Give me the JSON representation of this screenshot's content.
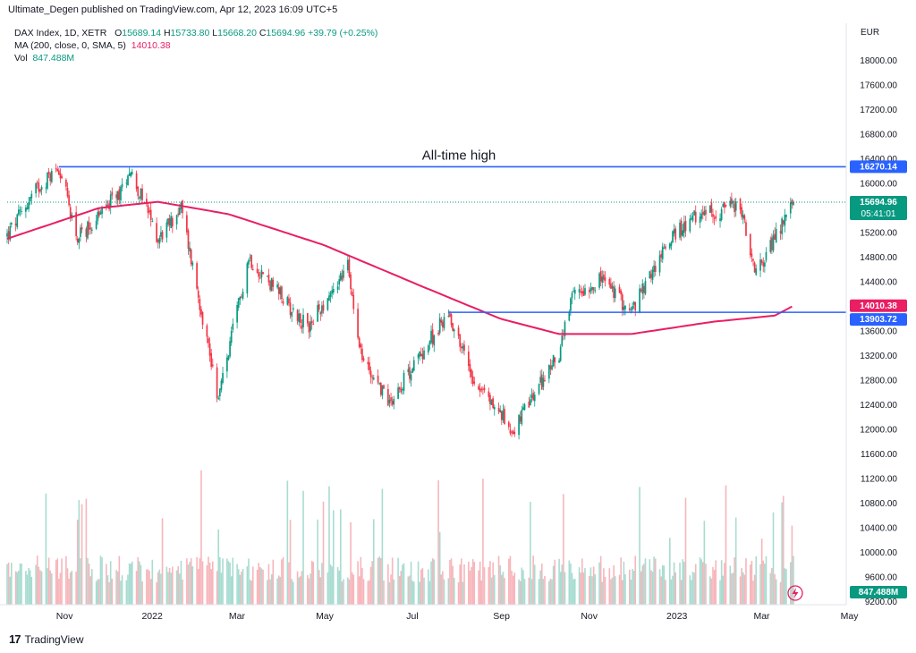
{
  "header": {
    "published_text": "Ultimate_Degen published on TradingView.com, Apr 12, 2023 16:09 UTC+5"
  },
  "legend": {
    "symbol_text": "DAX Index, 1D, XETR",
    "open_label": "O",
    "open": "15689.14",
    "high_label": "H",
    "high": "15733.80",
    "low_label": "L",
    "low": "15668.20",
    "close_label": "C",
    "close": "15694.96",
    "change": "+39.79 (+0.25%)",
    "ma_text": "MA (200, close, 0, SMA, 5)",
    "ma_value": "14010.38",
    "vol_label": "Vol",
    "vol_value": "847.488M"
  },
  "axis": {
    "currency": "EUR",
    "price_ticks": [
      "18000.00",
      "17600.00",
      "17200.00",
      "16800.00",
      "16400.00",
      "16000.00",
      "15200.00",
      "14800.00",
      "14400.00",
      "13600.00",
      "13200.00",
      "12800.00",
      "12400.00",
      "12000.00",
      "11600.00",
      "11200.00",
      "10800.00",
      "10400.00",
      "10000.00",
      "9600.00",
      "9200.00"
    ],
    "time_ticks": [
      "Nov",
      "2022",
      "Mar",
      "May",
      "Jul",
      "Sep",
      "Nov",
      "2023",
      "Mar",
      "May"
    ]
  },
  "labels": {
    "ath_annotation": "All-time high",
    "ath_price": "16270.14",
    "last_price": "15694.96",
    "countdown": "05:41:01",
    "ma_price": "14010.38",
    "support_price": "13903.72",
    "volume_badge": "847.488M"
  },
  "colors": {
    "up": "#089981",
    "down": "#f23645",
    "ma": "#e91e63",
    "hline": "#2962ff",
    "last_price_line": "#089981"
  },
  "footer": {
    "brand": "TradingView"
  },
  "chart_data": {
    "type": "candlestick",
    "title": "DAX Index, 1D, XETR",
    "currency": "EUR",
    "ylim": [
      9200,
      18200
    ],
    "date_range": [
      "2021-10-12",
      "2023-04-12"
    ],
    "price_path": [
      {
        "date": "2021-10-12",
        "close": 15150
      },
      {
        "date": "2021-11-01",
        "close": 15900
      },
      {
        "date": "2021-11-17",
        "close": 16270
      },
      {
        "date": "2021-11-30",
        "close": 15100
      },
      {
        "date": "2021-12-31",
        "close": 15900
      },
      {
        "date": "2022-01-05",
        "close": 16260
      },
      {
        "date": "2022-01-25",
        "close": 15100
      },
      {
        "date": "2022-02-10",
        "close": 15600
      },
      {
        "date": "2022-02-24",
        "close": 13950
      },
      {
        "date": "2022-03-08",
        "close": 12500
      },
      {
        "date": "2022-03-29",
        "close": 14800
      },
      {
        "date": "2022-05-09",
        "close": 13650
      },
      {
        "date": "2022-06-06",
        "close": 14650
      },
      {
        "date": "2022-06-16",
        "close": 13150
      },
      {
        "date": "2022-07-05",
        "close": 12450
      },
      {
        "date": "2022-08-15",
        "close": 13900
      },
      {
        "date": "2022-09-02",
        "close": 12800
      },
      {
        "date": "2022-09-29",
        "close": 11975
      },
      {
        "date": "2022-10-31",
        "close": 13250
      },
      {
        "date": "2022-11-10",
        "close": 14200
      },
      {
        "date": "2022-11-30",
        "close": 14450
      },
      {
        "date": "2022-12-20",
        "close": 13900
      },
      {
        "date": "2023-01-16",
        "close": 15100
      },
      {
        "date": "2023-02-03",
        "close": 15450
      },
      {
        "date": "2023-03-06",
        "close": 15650
      },
      {
        "date": "2023-03-16",
        "close": 14500
      },
      {
        "date": "2023-04-12",
        "close": 15694.96
      }
    ],
    "ma200_path": [
      {
        "date": "2021-10-12",
        "value": 15100
      },
      {
        "date": "2021-12-15",
        "value": 15600
      },
      {
        "date": "2022-01-25",
        "value": 15700
      },
      {
        "date": "2022-03-15",
        "value": 15500
      },
      {
        "date": "2022-05-20",
        "value": 15000
      },
      {
        "date": "2022-07-25",
        "value": 14350
      },
      {
        "date": "2022-09-20",
        "value": 13800
      },
      {
        "date": "2022-10-31",
        "value": 13550
      },
      {
        "date": "2022-12-20",
        "value": 13550
      },
      {
        "date": "2023-02-15",
        "value": 13750
      },
      {
        "date": "2023-03-30",
        "value": 13850
      },
      {
        "date": "2023-04-12",
        "value": 14010.38
      }
    ],
    "horizontal_lines": [
      {
        "price": 16270.14,
        "label": "All-time high"
      },
      {
        "price": 13903.72
      }
    ],
    "last_price": 15694.96,
    "ma200": 14010.38,
    "volume_last": "847.488M"
  }
}
